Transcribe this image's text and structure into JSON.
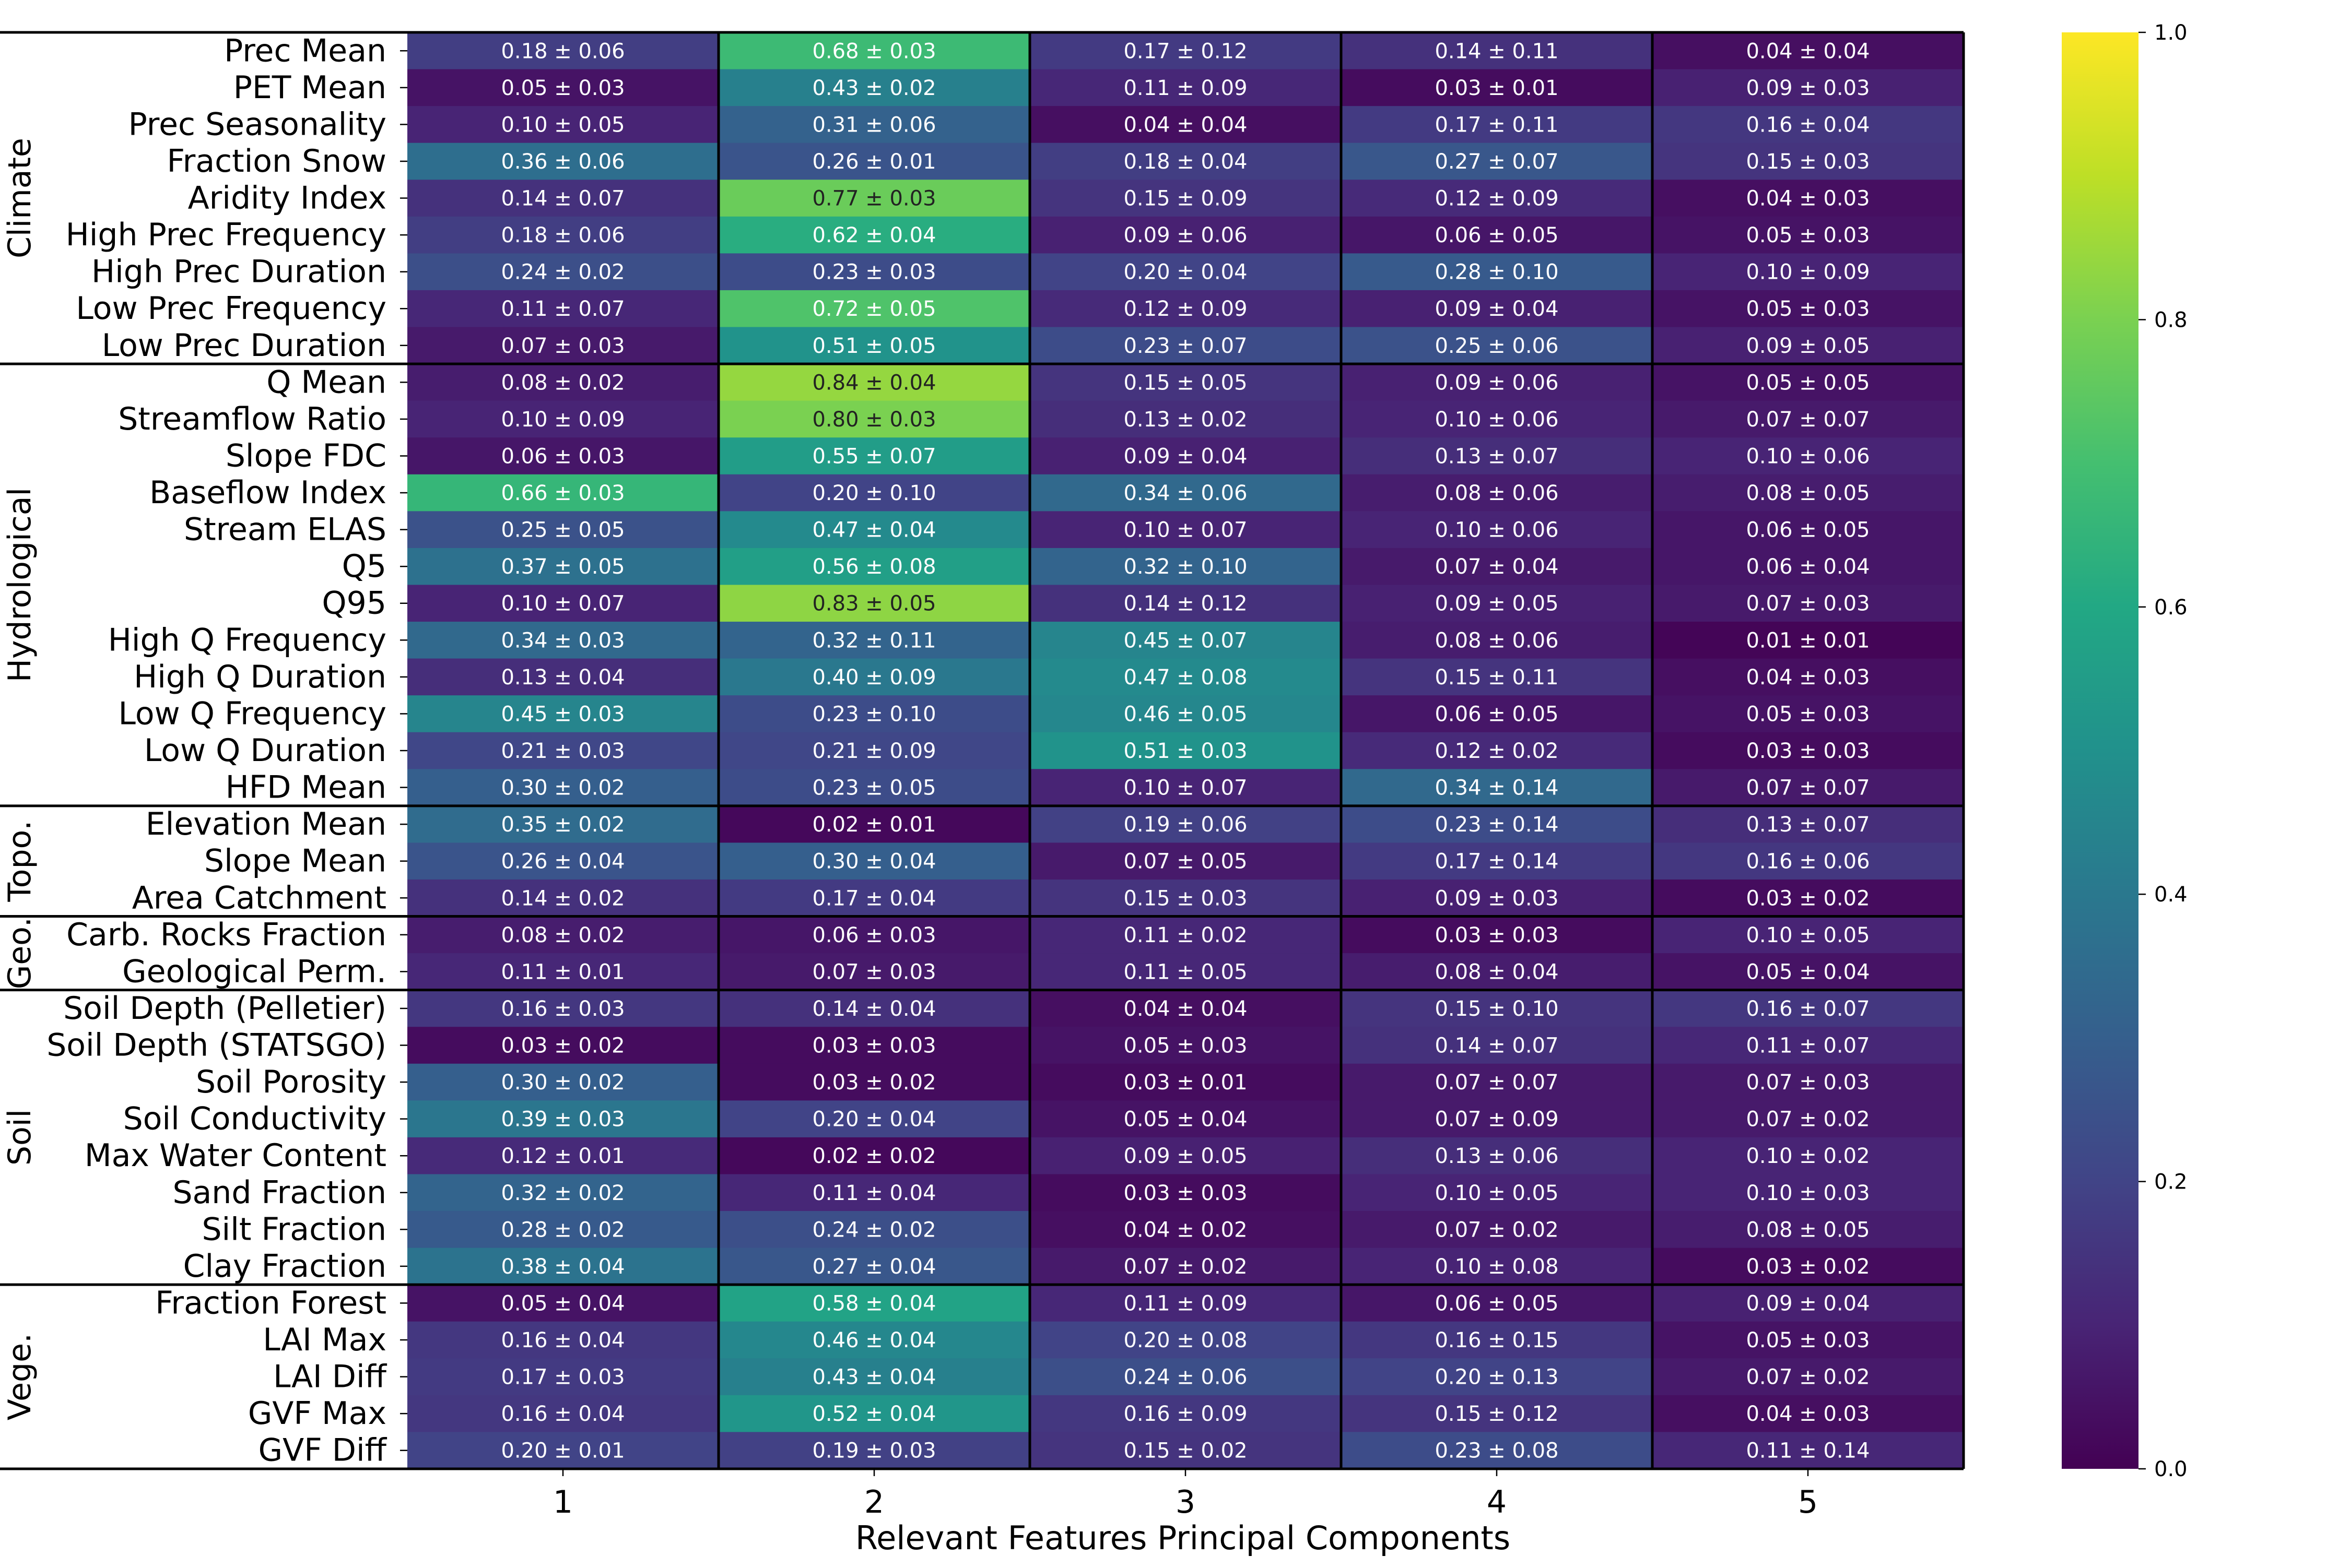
{
  "chart_data": {
    "type": "heatmap",
    "title": "",
    "xlabel": "Relevant Features Principal Components",
    "ylabel": "",
    "columns": [
      "1",
      "2",
      "3",
      "4",
      "5"
    ],
    "colorbar": {
      "min": 0.0,
      "max": 1.0,
      "ticks": [
        "0.0",
        "0.2",
        "0.4",
        "0.6",
        "0.8",
        "1.0"
      ],
      "colormap": "viridis"
    },
    "groups": [
      {
        "name": "Climate",
        "rows": [
          {
            "label": "Prec Mean",
            "mean": [
              0.18,
              0.68,
              0.17,
              0.14,
              0.04
            ],
            "text": [
              "0.18 ± 0.06",
              "0.68 ± 0.03",
              "0.17 ± 0.12",
              "0.14 ± 0.11",
              "0.04 ± 0.04"
            ]
          },
          {
            "label": "PET Mean",
            "mean": [
              0.05,
              0.43,
              0.11,
              0.03,
              0.09
            ],
            "text": [
              "0.05 ± 0.03",
              "0.43 ± 0.02",
              "0.11 ± 0.09",
              "0.03 ± 0.01",
              "0.09 ± 0.03"
            ]
          },
          {
            "label": "Prec Seasonality",
            "mean": [
              0.1,
              0.31,
              0.04,
              0.17,
              0.16
            ],
            "text": [
              "0.10 ± 0.05",
              "0.31 ± 0.06",
              "0.04 ± 0.04",
              "0.17 ± 0.11",
              "0.16 ± 0.04"
            ]
          },
          {
            "label": "Fraction Snow",
            "mean": [
              0.36,
              0.26,
              0.18,
              0.27,
              0.15
            ],
            "text": [
              "0.36 ± 0.06",
              "0.26 ± 0.01",
              "0.18 ± 0.04",
              "0.27 ± 0.07",
              "0.15 ± 0.03"
            ]
          },
          {
            "label": "Aridity Index",
            "mean": [
              0.14,
              0.77,
              0.15,
              0.12,
              0.04
            ],
            "text": [
              "0.14 ± 0.07",
              "0.77 ± 0.03",
              "0.15 ± 0.09",
              "0.12 ± 0.09",
              "0.04 ± 0.03"
            ]
          },
          {
            "label": "High Prec Frequency",
            "mean": [
              0.18,
              0.62,
              0.09,
              0.06,
              0.05
            ],
            "text": [
              "0.18 ± 0.06",
              "0.62 ± 0.04",
              "0.09 ± 0.06",
              "0.06 ± 0.05",
              "0.05 ± 0.03"
            ]
          },
          {
            "label": "High Prec Duration",
            "mean": [
              0.24,
              0.23,
              0.2,
              0.28,
              0.1
            ],
            "text": [
              "0.24 ± 0.02",
              "0.23 ± 0.03",
              "0.20 ± 0.04",
              "0.28 ± 0.10",
              "0.10 ± 0.09"
            ]
          },
          {
            "label": "Low Prec Frequency",
            "mean": [
              0.11,
              0.72,
              0.12,
              0.09,
              0.05
            ],
            "text": [
              "0.11 ± 0.07",
              "0.72 ± 0.05",
              "0.12 ± 0.09",
              "0.09 ± 0.04",
              "0.05 ± 0.03"
            ]
          },
          {
            "label": "Low Prec Duration",
            "mean": [
              0.07,
              0.51,
              0.23,
              0.25,
              0.09
            ],
            "text": [
              "0.07 ± 0.03",
              "0.51 ± 0.05",
              "0.23 ± 0.07",
              "0.25 ± 0.06",
              "0.09 ± 0.05"
            ]
          }
        ]
      },
      {
        "name": "Hydrological",
        "rows": [
          {
            "label": "Q Mean",
            "mean": [
              0.08,
              0.84,
              0.15,
              0.09,
              0.05
            ],
            "text": [
              "0.08 ± 0.02",
              "0.84 ± 0.04",
              "0.15 ± 0.05",
              "0.09 ± 0.06",
              "0.05 ± 0.05"
            ]
          },
          {
            "label": "Streamflow Ratio",
            "mean": [
              0.1,
              0.8,
              0.13,
              0.1,
              0.07
            ],
            "text": [
              "0.10 ± 0.09",
              "0.80 ± 0.03",
              "0.13 ± 0.02",
              "0.10 ± 0.06",
              "0.07 ± 0.07"
            ]
          },
          {
            "label": "Slope FDC",
            "mean": [
              0.06,
              0.55,
              0.09,
              0.13,
              0.1
            ],
            "text": [
              "0.06 ± 0.03",
              "0.55 ± 0.07",
              "0.09 ± 0.04",
              "0.13 ± 0.07",
              "0.10 ± 0.06"
            ]
          },
          {
            "label": "Baseflow Index",
            "mean": [
              0.66,
              0.2,
              0.34,
              0.08,
              0.08
            ],
            "text": [
              "0.66 ± 0.03",
              "0.20 ± 0.10",
              "0.34 ± 0.06",
              "0.08 ± 0.06",
              "0.08 ± 0.05"
            ]
          },
          {
            "label": "Stream ELAS",
            "mean": [
              0.25,
              0.47,
              0.1,
              0.1,
              0.06
            ],
            "text": [
              "0.25 ± 0.05",
              "0.47 ± 0.04",
              "0.10 ± 0.07",
              "0.10 ± 0.06",
              "0.06 ± 0.05"
            ]
          },
          {
            "label": "Q5",
            "mean": [
              0.37,
              0.56,
              0.32,
              0.07,
              0.06
            ],
            "text": [
              "0.37 ± 0.05",
              "0.56 ± 0.08",
              "0.32 ± 0.10",
              "0.07 ± 0.04",
              "0.06 ± 0.04"
            ]
          },
          {
            "label": "Q95",
            "mean": [
              0.1,
              0.83,
              0.14,
              0.09,
              0.07
            ],
            "text": [
              "0.10 ± 0.07",
              "0.83 ± 0.05",
              "0.14 ± 0.12",
              "0.09 ± 0.05",
              "0.07 ± 0.03"
            ]
          },
          {
            "label": "High Q Frequency",
            "mean": [
              0.34,
              0.32,
              0.45,
              0.08,
              0.01
            ],
            "text": [
              "0.34 ± 0.03",
              "0.32 ± 0.11",
              "0.45 ± 0.07",
              "0.08 ± 0.06",
              "0.01 ± 0.01"
            ]
          },
          {
            "label": "High Q Duration",
            "mean": [
              0.13,
              0.4,
              0.47,
              0.15,
              0.04
            ],
            "text": [
              "0.13 ± 0.04",
              "0.40 ± 0.09",
              "0.47 ± 0.08",
              "0.15 ± 0.11",
              "0.04 ± 0.03"
            ]
          },
          {
            "label": "Low Q Frequency",
            "mean": [
              0.45,
              0.23,
              0.46,
              0.06,
              0.05
            ],
            "text": [
              "0.45 ± 0.03",
              "0.23 ± 0.10",
              "0.46 ± 0.05",
              "0.06 ± 0.05",
              "0.05 ± 0.03"
            ]
          },
          {
            "label": "Low Q Duration",
            "mean": [
              0.21,
              0.21,
              0.51,
              0.12,
              0.03
            ],
            "text": [
              "0.21 ± 0.03",
              "0.21 ± 0.09",
              "0.51 ± 0.03",
              "0.12 ± 0.02",
              "0.03 ± 0.03"
            ]
          },
          {
            "label": "HFD Mean",
            "mean": [
              0.3,
              0.23,
              0.1,
              0.34,
              0.07
            ],
            "text": [
              "0.30 ± 0.02",
              "0.23 ± 0.05",
              "0.10 ± 0.07",
              "0.34 ± 0.14",
              "0.07 ± 0.07"
            ]
          }
        ]
      },
      {
        "name": "Topo.",
        "rows": [
          {
            "label": "Elevation Mean",
            "mean": [
              0.35,
              0.02,
              0.19,
              0.23,
              0.13
            ],
            "text": [
              "0.35 ± 0.02",
              "0.02 ± 0.01",
              "0.19 ± 0.06",
              "0.23 ± 0.14",
              "0.13 ± 0.07"
            ]
          },
          {
            "label": "Slope Mean",
            "mean": [
              0.26,
              0.3,
              0.07,
              0.17,
              0.16
            ],
            "text": [
              "0.26 ± 0.04",
              "0.30 ± 0.04",
              "0.07 ± 0.05",
              "0.17 ± 0.14",
              "0.16 ± 0.06"
            ]
          },
          {
            "label": "Area Catchment",
            "mean": [
              0.14,
              0.17,
              0.15,
              0.09,
              0.03
            ],
            "text": [
              "0.14 ± 0.02",
              "0.17 ± 0.04",
              "0.15 ± 0.03",
              "0.09 ± 0.03",
              "0.03 ± 0.02"
            ]
          }
        ]
      },
      {
        "name": "Geo.",
        "rows": [
          {
            "label": "Carb. Rocks Fraction",
            "mean": [
              0.08,
              0.06,
              0.11,
              0.03,
              0.1
            ],
            "text": [
              "0.08 ± 0.02",
              "0.06 ± 0.03",
              "0.11 ± 0.02",
              "0.03 ± 0.03",
              "0.10 ± 0.05"
            ]
          },
          {
            "label": "Geological Perm.",
            "mean": [
              0.11,
              0.07,
              0.11,
              0.08,
              0.05
            ],
            "text": [
              "0.11 ± 0.01",
              "0.07 ± 0.03",
              "0.11 ± 0.05",
              "0.08 ± 0.04",
              "0.05 ± 0.04"
            ]
          }
        ]
      },
      {
        "name": "Soil",
        "rows": [
          {
            "label": "Soil Depth (Pelletier)",
            "mean": [
              0.16,
              0.14,
              0.04,
              0.15,
              0.16
            ],
            "text": [
              "0.16 ± 0.03",
              "0.14 ± 0.04",
              "0.04 ± 0.04",
              "0.15 ± 0.10",
              "0.16 ± 0.07"
            ]
          },
          {
            "label": "Soil Depth (STATSGO)",
            "mean": [
              0.03,
              0.03,
              0.05,
              0.14,
              0.11
            ],
            "text": [
              "0.03 ± 0.02",
              "0.03 ± 0.03",
              "0.05 ± 0.03",
              "0.14 ± 0.07",
              "0.11 ± 0.07"
            ]
          },
          {
            "label": "Soil Porosity",
            "mean": [
              0.3,
              0.03,
              0.03,
              0.07,
              0.07
            ],
            "text": [
              "0.30 ± 0.02",
              "0.03 ± 0.02",
              "0.03 ± 0.01",
              "0.07 ± 0.07",
              "0.07 ± 0.03"
            ]
          },
          {
            "label": "Soil Conductivity",
            "mean": [
              0.39,
              0.2,
              0.05,
              0.07,
              0.07
            ],
            "text": [
              "0.39 ± 0.03",
              "0.20 ± 0.04",
              "0.05 ± 0.04",
              "0.07 ± 0.09",
              "0.07 ± 0.02"
            ]
          },
          {
            "label": "Max Water Content",
            "mean": [
              0.12,
              0.02,
              0.09,
              0.13,
              0.1
            ],
            "text": [
              "0.12 ± 0.01",
              "0.02 ± 0.02",
              "0.09 ± 0.05",
              "0.13 ± 0.06",
              "0.10 ± 0.02"
            ]
          },
          {
            "label": "Sand Fraction",
            "mean": [
              0.32,
              0.11,
              0.03,
              0.1,
              0.1
            ],
            "text": [
              "0.32 ± 0.02",
              "0.11 ± 0.04",
              "0.03 ± 0.03",
              "0.10 ± 0.05",
              "0.10 ± 0.03"
            ]
          },
          {
            "label": "Silt Fraction",
            "mean": [
              0.28,
              0.24,
              0.04,
              0.07,
              0.08
            ],
            "text": [
              "0.28 ± 0.02",
              "0.24 ± 0.02",
              "0.04 ± 0.02",
              "0.07 ± 0.02",
              "0.08 ± 0.05"
            ]
          },
          {
            "label": "Clay Fraction",
            "mean": [
              0.38,
              0.27,
              0.07,
              0.1,
              0.03
            ],
            "text": [
              "0.38 ± 0.04",
              "0.27 ± 0.04",
              "0.07 ± 0.02",
              "0.10 ± 0.08",
              "0.03 ± 0.02"
            ]
          }
        ]
      },
      {
        "name": "Vege.",
        "rows": [
          {
            "label": "Fraction Forest",
            "mean": [
              0.05,
              0.58,
              0.11,
              0.06,
              0.09
            ],
            "text": [
              "0.05 ± 0.04",
              "0.58 ± 0.04",
              "0.11 ± 0.09",
              "0.06 ± 0.05",
              "0.09 ± 0.04"
            ]
          },
          {
            "label": "LAI Max",
            "mean": [
              0.16,
              0.46,
              0.2,
              0.16,
              0.05
            ],
            "text": [
              "0.16 ± 0.04",
              "0.46 ± 0.04",
              "0.20 ± 0.08",
              "0.16 ± 0.15",
              "0.05 ± 0.03"
            ]
          },
          {
            "label": "LAI Diff",
            "mean": [
              0.17,
              0.43,
              0.24,
              0.2,
              0.07
            ],
            "text": [
              "0.17 ± 0.03",
              "0.43 ± 0.04",
              "0.24 ± 0.06",
              "0.20 ± 0.13",
              "0.07 ± 0.02"
            ]
          },
          {
            "label": "GVF Max",
            "mean": [
              0.16,
              0.52,
              0.16,
              0.15,
              0.04
            ],
            "text": [
              "0.16 ± 0.04",
              "0.52 ± 0.04",
              "0.16 ± 0.09",
              "0.15 ± 0.12",
              "0.04 ± 0.03"
            ]
          },
          {
            "label": "GVF Diff",
            "mean": [
              0.2,
              0.19,
              0.15,
              0.23,
              0.11
            ],
            "text": [
              "0.20 ± 0.01",
              "0.19 ± 0.03",
              "0.15 ± 0.02",
              "0.23 ± 0.08",
              "0.11 ± 0.14"
            ]
          }
        ]
      }
    ]
  }
}
